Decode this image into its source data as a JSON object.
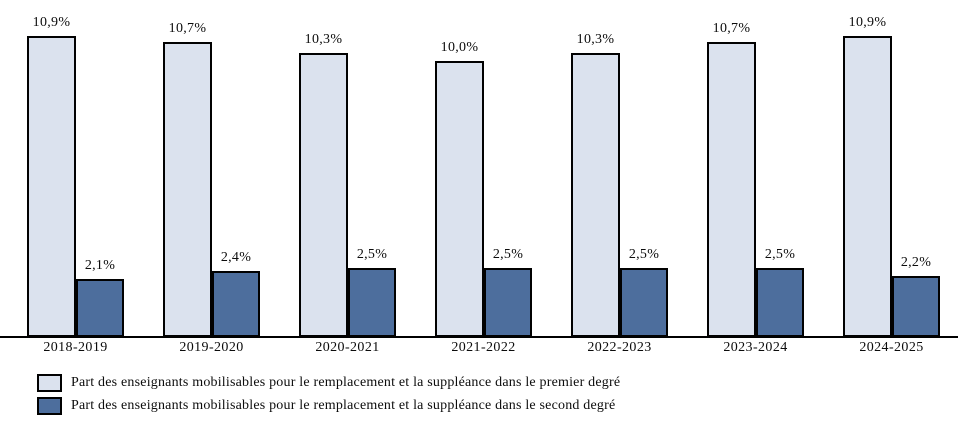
{
  "chart_data": {
    "type": "bar",
    "title": "",
    "xlabel": "",
    "ylabel": "",
    "ylim": [
      0,
      12
    ],
    "grid": false,
    "legend_position": "bottom-left",
    "value_label_suffix": "%",
    "categories": [
      "2018-2019",
      "2019-2020",
      "2020-2021",
      "2021-2022",
      "2022-2023",
      "2023-2024",
      "2024-2025"
    ],
    "series": [
      {
        "name": "Part des enseignants mobilisables pour le remplacement et la suppléance dans le premier degré",
        "values": [
          10.9,
          10.7,
          10.3,
          10.0,
          10.3,
          10.7,
          10.9
        ],
        "labels": [
          "10,9%",
          "10,7%",
          "10,3%",
          "10,0%",
          "10,3%",
          "10,7%",
          "10,9%"
        ],
        "color": "#dbe2ee"
      },
      {
        "name": "Part des enseignants mobilisables pour le remplacement et la suppléance dans le second degré",
        "values": [
          2.1,
          2.4,
          2.5,
          2.5,
          2.5,
          2.5,
          2.2
        ],
        "labels": [
          "2,1%",
          "2,4%",
          "2,5%",
          "2,5%",
          "2,5%",
          "2,5%",
          "2,2%"
        ],
        "color": "#4d6e9d"
      }
    ]
  },
  "colors": {
    "bar_border": "#010101",
    "axis_line": "#000000",
    "background": "#ffffff",
    "text": "#0c0c0c"
  }
}
